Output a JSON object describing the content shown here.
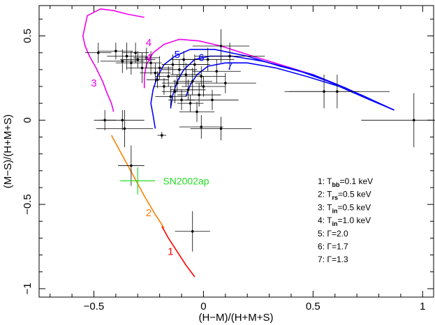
{
  "chart_data": {
    "type": "scatter",
    "xlabel": "(H−M)/(H+M+S)",
    "ylabel": "(M−S)/(H+M+S)",
    "xlim": [
      -0.75,
      1.05
    ],
    "ylim": [
      -1.05,
      0.68
    ],
    "xticks": [
      {
        "value": -0.5,
        "label": "−0.5"
      },
      {
        "value": 0,
        "label": "0"
      },
      {
        "value": 0.5,
        "label": "0.5"
      },
      {
        "value": 1,
        "label": "1"
      }
    ],
    "yticks": [
      {
        "value": 0.5,
        "label": "0.5"
      },
      {
        "value": 0,
        "label": "0"
      },
      {
        "value": -0.5,
        "label": "−0.5"
      },
      {
        "value": -1,
        "label": "−1"
      }
    ],
    "data_points": [
      {
        "x": -0.48,
        "y": 0.4,
        "xerr": 0.06,
        "yerr": 0.06
      },
      {
        "x": -0.4,
        "y": 0.41,
        "xerr": 0.08,
        "yerr": 0.05
      },
      {
        "x": -0.37,
        "y": 0.35,
        "xerr": 0.1,
        "yerr": 0.07
      },
      {
        "x": -0.35,
        "y": 0.38,
        "xerr": 0.09,
        "yerr": 0.08
      },
      {
        "x": -0.33,
        "y": 0.34,
        "xerr": 0.07,
        "yerr": 0.07
      },
      {
        "x": -0.31,
        "y": 0.4,
        "xerr": 0.06,
        "yerr": 0.06
      },
      {
        "x": -0.3,
        "y": 0.36,
        "xerr": 0.08,
        "yerr": 0.05
      },
      {
        "x": -0.28,
        "y": 0.31,
        "xerr": 0.07,
        "yerr": 0.09
      },
      {
        "x": -0.26,
        "y": 0.37,
        "xerr": 0.06,
        "yerr": 0.06
      },
      {
        "x": -0.24,
        "y": 0.34,
        "xerr": 0.05,
        "yerr": 0.07
      },
      {
        "x": -0.22,
        "y": 0.28,
        "xerr": 0.07,
        "yerr": 0.06
      },
      {
        "x": -0.21,
        "y": 0.24,
        "xerr": 0.05,
        "yerr": 0.05
      },
      {
        "x": -0.2,
        "y": 0.31,
        "xerr": 0.06,
        "yerr": 0.07
      },
      {
        "x": -0.18,
        "y": 0.2,
        "xerr": 0.05,
        "yerr": 0.05
      },
      {
        "x": -0.16,
        "y": 0.26,
        "xerr": 0.06,
        "yerr": 0.06
      },
      {
        "x": -0.15,
        "y": 0.14,
        "xerr": 0.07,
        "yerr": 0.06
      },
      {
        "x": -0.14,
        "y": 0.33,
        "xerr": 0.05,
        "yerr": 0.06
      },
      {
        "x": -0.13,
        "y": 0.17,
        "xerr": 0.06,
        "yerr": 0.07
      },
      {
        "x": -0.12,
        "y": 0.22,
        "xerr": 0.07,
        "yerr": 0.05
      },
      {
        "x": -0.11,
        "y": 0.3,
        "xerr": 0.08,
        "yerr": 0.06
      },
      {
        "x": -0.1,
        "y": 0.12,
        "xerr": 0.06,
        "yerr": 0.06
      },
      {
        "x": -0.09,
        "y": 0.36,
        "xerr": 0.06,
        "yerr": 0.05
      },
      {
        "x": -0.08,
        "y": 0.27,
        "xerr": 0.07,
        "yerr": 0.07
      },
      {
        "x": -0.07,
        "y": 0.18,
        "xerr": 0.08,
        "yerr": 0.06
      },
      {
        "x": -0.06,
        "y": 0.1,
        "xerr": 0.06,
        "yerr": 0.05
      },
      {
        "x": -0.05,
        "y": 0.23,
        "xerr": 0.09,
        "yerr": 0.08
      },
      {
        "x": -0.04,
        "y": 0.33,
        "xerr": 0.07,
        "yerr": 0.06
      },
      {
        "x": -0.03,
        "y": 0.05,
        "xerr": 0.08,
        "yerr": 0.06
      },
      {
        "x": -0.02,
        "y": 0.15,
        "xerr": 0.1,
        "yerr": 0.07
      },
      {
        "x": -0.01,
        "y": 0.26,
        "xerr": 0.11,
        "yerr": 0.06
      },
      {
        "x": 0.0,
        "y": 0.2,
        "xerr": 0.1,
        "yerr": 0.06
      },
      {
        "x": 0.02,
        "y": 0.36,
        "xerr": 0.12,
        "yerr": 0.07
      },
      {
        "x": 0.04,
        "y": 0.12,
        "xerr": 0.12,
        "yerr": 0.06
      },
      {
        "x": 0.06,
        "y": 0.29,
        "xerr": 0.11,
        "yerr": 0.07
      },
      {
        "x": 0.08,
        "y": 0.44,
        "xerr": 0.13,
        "yerr": 0.1
      },
      {
        "x": 0.1,
        "y": 0.22,
        "xerr": 0.14,
        "yerr": 0.06
      },
      {
        "x": 0.12,
        "y": 0.38,
        "xerr": 0.16,
        "yerr": 0.08
      },
      {
        "x": -0.01,
        "y": -0.04,
        "xerr": 0.1,
        "yerr": 0.07
      },
      {
        "x": 0.08,
        "y": -0.05,
        "xerr": 0.14,
        "yerr": 0.07
      },
      {
        "x": -0.19,
        "y": -0.09,
        "xerr": 0.02,
        "yerr": 0.02
      },
      {
        "x": -0.37,
        "y": 0.0,
        "xerr": 0.1,
        "yerr": 0.06
      },
      {
        "x": -0.36,
        "y": -0.05,
        "xerr": 0.13,
        "yerr": 0.11
      },
      {
        "x": -0.45,
        "y": 0.0,
        "xerr": 0.05,
        "yerr": 0.06
      },
      {
        "x": -0.33,
        "y": -0.27,
        "xerr": 0.06,
        "yerr": 0.12
      },
      {
        "x": 0.55,
        "y": 0.17,
        "xerr": 0.16,
        "yerr": 0.1
      },
      {
        "x": 0.61,
        "y": 0.17,
        "xerr": 0.24,
        "yerr": 0.1
      },
      {
        "x": 0.96,
        "y": 0.0,
        "xerr": 0.24,
        "yerr": 0.16
      },
      {
        "x": -0.05,
        "y": -0.66,
        "xerr": 0.08,
        "yerr": 0.12
      }
    ],
    "snr_point": {
      "label": "SN2002ap",
      "x": -0.3,
      "y": -0.36,
      "xerr": 0.08,
      "yerr": 0.08
    },
    "curves": [
      {
        "id": "1",
        "color": "#ff0000",
        "points": [
          [
            -0.19,
            -0.63
          ],
          [
            -0.16,
            -0.7
          ],
          [
            -0.12,
            -0.78
          ],
          [
            -0.08,
            -0.86
          ],
          [
            -0.04,
            -0.93
          ]
        ]
      },
      {
        "id": "2",
        "color": "#ff7f00",
        "points": [
          [
            -0.42,
            -0.09
          ],
          [
            -0.37,
            -0.21
          ],
          [
            -0.32,
            -0.33
          ],
          [
            -0.27,
            -0.45
          ],
          [
            -0.22,
            -0.56
          ],
          [
            -0.18,
            -0.64
          ]
        ]
      },
      {
        "id": "3",
        "color": "#ee00ee",
        "points": [
          [
            -0.27,
            0.61
          ],
          [
            -0.35,
            0.63
          ],
          [
            -0.41,
            0.65
          ],
          [
            -0.47,
            0.66
          ],
          [
            -0.53,
            0.62
          ],
          [
            -0.54,
            0.56
          ],
          [
            -0.55,
            0.5
          ],
          [
            -0.54,
            0.44
          ],
          [
            -0.52,
            0.38
          ],
          [
            -0.49,
            0.31
          ],
          [
            -0.46,
            0.23
          ],
          [
            -0.44,
            0.16
          ],
          [
            -0.42,
            0.1
          ],
          [
            -0.41,
            0.05
          ]
        ]
      },
      {
        "id": "4",
        "color": "#ee00ee",
        "points": [
          [
            -0.27,
            0.19
          ],
          [
            -0.27,
            0.26
          ],
          [
            -0.26,
            0.33
          ],
          [
            -0.23,
            0.4
          ],
          [
            -0.18,
            0.45
          ],
          [
            -0.11,
            0.48
          ],
          [
            -0.02,
            0.47
          ],
          [
            0.08,
            0.44
          ],
          [
            0.2,
            0.39
          ],
          [
            0.35,
            0.33
          ],
          [
            0.5,
            0.27
          ],
          [
            0.65,
            0.19
          ],
          [
            0.75,
            0.13
          ],
          [
            0.87,
            0.06
          ]
        ]
      },
      {
        "id": "5",
        "color": "#0000ff",
        "points": [
          [
            -0.22,
            -0.05
          ],
          [
            -0.23,
            0.03
          ],
          [
            -0.24,
            0.1
          ],
          [
            -0.23,
            0.18
          ],
          [
            -0.21,
            0.26
          ],
          [
            -0.18,
            0.33
          ],
          [
            -0.13,
            0.38
          ],
          [
            -0.06,
            0.42
          ],
          [
            0.05,
            0.42
          ],
          [
            0.2,
            0.38
          ],
          [
            0.35,
            0.32
          ],
          [
            0.5,
            0.27
          ],
          [
            0.65,
            0.19
          ],
          [
            0.78,
            0.11
          ],
          [
            0.87,
            0.06
          ]
        ]
      },
      {
        "id": "6",
        "color": "#0000ff",
        "points": [
          [
            -0.15,
            0.07
          ],
          [
            -0.14,
            0.15
          ],
          [
            -0.12,
            0.23
          ],
          [
            -0.09,
            0.3
          ],
          [
            -0.04,
            0.36
          ],
          [
            0.03,
            0.38
          ],
          [
            0.13,
            0.38
          ],
          [
            0.27,
            0.35
          ],
          [
            0.42,
            0.3
          ],
          [
            0.57,
            0.23
          ],
          [
            0.72,
            0.15
          ],
          [
            0.87,
            0.06
          ]
        ]
      },
      {
        "id": "7",
        "color": "#0000ff",
        "points": [
          [
            -0.08,
            0.14
          ],
          [
            -0.06,
            0.21
          ],
          [
            -0.03,
            0.27
          ],
          [
            0.02,
            0.32
          ],
          [
            0.1,
            0.34
          ],
          [
            0.2,
            0.34
          ],
          [
            0.33,
            0.31
          ],
          [
            0.47,
            0.26
          ],
          [
            0.62,
            0.2
          ],
          [
            0.76,
            0.12
          ],
          [
            0.87,
            0.06
          ]
        ]
      }
    ],
    "curve_labels": [
      {
        "text": "1",
        "x": -0.15,
        "y": -0.8,
        "color": "#ff0000"
      },
      {
        "text": "2",
        "x": -0.25,
        "y": -0.57,
        "color": "#ff7f00"
      },
      {
        "text": "3",
        "x": -0.5,
        "y": 0.2,
        "color": "#ee00ee"
      },
      {
        "text": "4",
        "x": -0.25,
        "y": 0.44,
        "color": "#ee00ee"
      },
      {
        "text": "4",
        "x": -0.25,
        "y": 0.35,
        "color": "#ee00ee"
      },
      {
        "text": "5",
        "x": -0.12,
        "y": 0.37,
        "color": "#0000ff"
      },
      {
        "text": "6",
        "x": -0.01,
        "y": 0.35,
        "color": "#0000ff"
      },
      {
        "text": "7",
        "x": 0.12,
        "y": 0.3,
        "color": "#0000ff"
      }
    ],
    "legend": [
      {
        "num": "1: ",
        "sym": "T",
        "sub": "bb",
        "rest": "=0.1  keV"
      },
      {
        "num": "2: ",
        "sym": "T",
        "sub": "rs",
        "rest": "=0.5  keV"
      },
      {
        "num": "3: ",
        "sym": "T",
        "sub": "in",
        "rest": "=0.5  keV"
      },
      {
        "num": "4: ",
        "sym": "T",
        "sub": "in",
        "rest": "=1.0  keV"
      },
      {
        "num": "5: ",
        "sym": "Γ",
        "sub": "",
        "rest": "=2.0"
      },
      {
        "num": "6: ",
        "sym": "Γ",
        "sub": "",
        "rest": "=1.7"
      },
      {
        "num": "7: ",
        "sym": "Γ",
        "sub": "",
        "rest": "=1.3"
      }
    ],
    "legend_placement": "lower-right",
    "grid": false,
    "colors": {
      "data": "#000000",
      "snr": "#22dd22"
    }
  }
}
